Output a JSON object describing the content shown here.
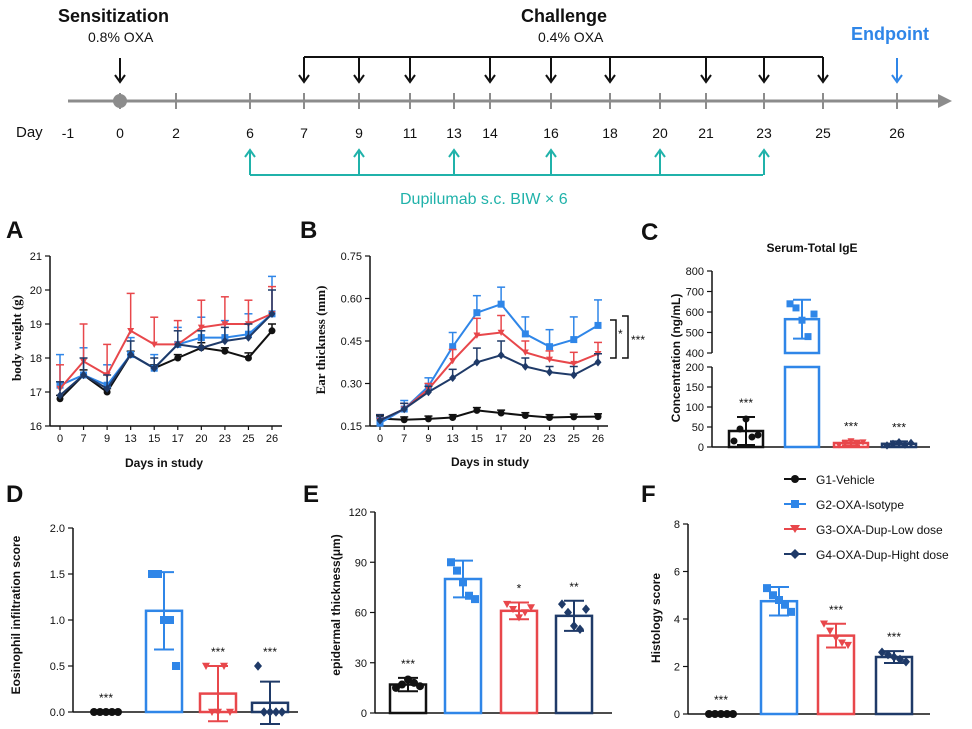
{
  "colors": {
    "black": "#111111",
    "blue": "#2f86e8",
    "red": "#e8474b",
    "navy": "#1f3a68",
    "teal": "#20b2aa",
    "gray": "#8c8c8c",
    "endpoint": "#2f86e8"
  },
  "timeline": {
    "sensitization_title": "Sensitization",
    "sensitization_sub": "0.8% OXA",
    "challenge_title": "Challenge",
    "challenge_sub": "0.4% OXA",
    "endpoint_title": "Endpoint",
    "day_label": "Day",
    "days": [
      "-1",
      "0",
      "2",
      "6",
      "7",
      "9",
      "11",
      "13",
      "14",
      "16",
      "18",
      "20",
      "21",
      "23",
      "25",
      "26"
    ],
    "sensitization_day": "0",
    "challenge_days": [
      "7",
      "9",
      "11",
      "14",
      "16",
      "18",
      "21",
      "23",
      "25"
    ],
    "dosing_days": [
      "6",
      "9",
      "13",
      "16",
      "20",
      "23"
    ],
    "dupilumab_label": "Dupilumab s.c. BIW × 6"
  },
  "legend": {
    "items": [
      {
        "label": "G1-Vehicle",
        "color": "#111111",
        "marker": "circle"
      },
      {
        "label": "G2-OXA-Isotype",
        "color": "#2f86e8",
        "marker": "square"
      },
      {
        "label": "G3-OXA-Dup-Low dose",
        "color": "#e8474b",
        "marker": "triangle-down"
      },
      {
        "label": "G4-OXA-Dup-Hight dose",
        "color": "#1f3a68",
        "marker": "diamond"
      }
    ]
  },
  "panels": {
    "A": "A",
    "B": "B",
    "C": "C",
    "D": "D",
    "E": "E",
    "F": "F"
  },
  "chart_data": [
    {
      "id": "A",
      "type": "line",
      "title": "",
      "xlabel": "Days in study",
      "ylabel": "body weight (g)",
      "x": [
        "0",
        "7",
        "9",
        "13",
        "15",
        "17",
        "20",
        "23",
        "25",
        "26"
      ],
      "ylim": [
        16,
        21
      ],
      "yticks": [
        "16",
        "17",
        "18",
        "19",
        "20",
        "21"
      ],
      "series": [
        {
          "name": "G1-Vehicle",
          "values": [
            16.8,
            17.5,
            17.0,
            18.1,
            17.7,
            18.0,
            18.3,
            18.2,
            18.0,
            18.8
          ],
          "err": [
            0.1,
            0.15,
            0.1,
            0.1,
            0.1,
            0.1,
            0.15,
            0.1,
            0.15,
            0.2
          ]
        },
        {
          "name": "G2-OXA-Isotype",
          "values": [
            17.2,
            17.5,
            17.2,
            18.1,
            17.7,
            18.4,
            18.6,
            18.6,
            18.7,
            19.3
          ],
          "err": [
            0.9,
            0.8,
            0.6,
            0.5,
            0.4,
            0.5,
            0.6,
            0.5,
            0.6,
            1.1
          ]
        },
        {
          "name": "G3-OXA-Dup-Low dose",
          "values": [
            17.1,
            17.9,
            17.5,
            18.8,
            18.4,
            18.4,
            18.9,
            19.0,
            19.0,
            19.3
          ],
          "err": [
            0.7,
            1.1,
            0.9,
            1.1,
            0.8,
            0.7,
            0.8,
            0.8,
            0.7,
            0.8
          ]
        },
        {
          "name": "G4-OXA-Dup-Hight dose",
          "values": [
            16.9,
            17.5,
            17.1,
            18.1,
            17.7,
            18.4,
            18.3,
            18.5,
            18.6,
            19.3
          ],
          "err": [
            0.4,
            0.5,
            0.4,
            0.4,
            0.3,
            0.4,
            0.5,
            0.4,
            0.4,
            0.7
          ]
        }
      ]
    },
    {
      "id": "B",
      "type": "line",
      "title": "",
      "xlabel": "Days in study",
      "ylabel": "Ear thickness (mm)",
      "x": [
        "0",
        "7",
        "9",
        "13",
        "15",
        "17",
        "20",
        "23",
        "25",
        "26"
      ],
      "ylim": [
        0.15,
        0.75
      ],
      "yticks": [
        "0.15",
        "0.30",
        "0.45",
        "0.60",
        "0.75"
      ],
      "series": [
        {
          "name": "G1-Vehicle",
          "values": [
            0.176,
            0.172,
            0.175,
            0.18,
            0.205,
            0.196,
            0.187,
            0.18,
            0.182,
            0.183
          ],
          "err": [
            0.01,
            0.01,
            0.01,
            0.01,
            0.01,
            0.01,
            0.01,
            0.01,
            0.01,
            0.01
          ]
        },
        {
          "name": "G2-OXA-Isotype",
          "values": [
            0.16,
            0.21,
            0.29,
            0.43,
            0.55,
            0.58,
            0.475,
            0.43,
            0.455,
            0.505
          ],
          "err": [
            0.02,
            0.03,
            0.03,
            0.05,
            0.06,
            0.06,
            0.06,
            0.06,
            0.08,
            0.09
          ]
        },
        {
          "name": "G3-OXA-Dup-Low dose",
          "values": [
            0.17,
            0.21,
            0.28,
            0.38,
            0.47,
            0.48,
            0.41,
            0.385,
            0.37,
            0.405
          ],
          "err": [
            0.02,
            0.02,
            0.02,
            0.04,
            0.06,
            0.06,
            0.04,
            0.03,
            0.04,
            0.04
          ]
        },
        {
          "name": "G4-OXA-Dup-Hight dose",
          "values": [
            0.17,
            0.21,
            0.27,
            0.32,
            0.375,
            0.4,
            0.36,
            0.34,
            0.33,
            0.375
          ],
          "err": [
            0.02,
            0.02,
            0.02,
            0.03,
            0.05,
            0.05,
            0.03,
            0.02,
            0.03,
            0.03
          ]
        }
      ],
      "annotations": [
        "*",
        "***"
      ]
    },
    {
      "id": "C",
      "type": "bar",
      "title": "Serum-Total IgE",
      "ylabel": "Concentration (ng/mL)",
      "categories": [
        "G1-Vehicle",
        "G2-OXA-Isotype",
        "G3-OXA-Dup-Low dose",
        "G4-OXA-Dup-Hight dose"
      ],
      "values": [
        40,
        565,
        10,
        8
      ],
      "err": [
        35,
        95,
        6,
        6
      ],
      "yticks_lower": [
        "0",
        "50",
        "100",
        "150",
        "200"
      ],
      "yticks_upper": [
        "400",
        "500",
        "600",
        "700",
        "800"
      ],
      "axis_break": [
        200,
        400
      ],
      "points": [
        [
          15,
          45,
          70,
          25,
          30
        ],
        [
          640,
          620,
          560,
          480,
          590
        ],
        [
          5,
          10,
          15,
          8,
          12
        ],
        [
          4,
          8,
          12,
          6,
          10
        ]
      ],
      "significance": [
        "***",
        "",
        "***",
        "***"
      ]
    },
    {
      "id": "D",
      "type": "bar",
      "title": "",
      "ylabel": "Eosinophil infiltration score",
      "categories": [
        "G1-Vehicle",
        "G2-OXA-Isotype",
        "G3-OXA-Dup-Low dose",
        "G4-OXA-Dup-Hight dose"
      ],
      "values": [
        0.0,
        1.1,
        0.2,
        0.1
      ],
      "err": [
        0.0,
        0.42,
        0.3,
        0.23
      ],
      "ylim": [
        0,
        2.0
      ],
      "yticks": [
        "0.0",
        "0.5",
        "1.0",
        "1.5",
        "2.0"
      ],
      "points": [
        [
          0,
          0,
          0,
          0,
          0
        ],
        [
          1.5,
          1.5,
          1.0,
          1.0,
          0.5
        ],
        [
          0.5,
          0,
          0,
          0.5,
          0
        ],
        [
          0.5,
          0,
          0,
          0,
          0
        ]
      ],
      "significance": [
        "***",
        "",
        "***",
        "***"
      ]
    },
    {
      "id": "E",
      "type": "bar",
      "title": "",
      "ylabel": "epidermal thickness(μm)",
      "categories": [
        "G1-Vehicle",
        "G2-OXA-Isotype",
        "G3-OXA-Dup-Low dose",
        "G4-OXA-Dup-Hight dose"
      ],
      "values": [
        17,
        80,
        61,
        58
      ],
      "err": [
        4,
        11,
        5,
        9
      ],
      "ylim": [
        0,
        120
      ],
      "yticks": [
        "0",
        "30",
        "60",
        "90",
        "120"
      ],
      "points": [
        [
          15,
          17,
          20,
          18,
          16
        ],
        [
          90,
          85,
          78,
          70,
          68
        ],
        [
          65,
          62,
          57,
          60,
          63
        ],
        [
          65,
          60,
          52,
          50,
          62
        ]
      ],
      "significance": [
        "***",
        "",
        "*",
        "**"
      ]
    },
    {
      "id": "F",
      "type": "bar",
      "title": "",
      "ylabel": "Histology score",
      "categories": [
        "G1-Vehicle",
        "G2-OXA-Isotype",
        "G3-OXA-Dup-Low dose",
        "G4-OXA-Dup-Hight dose"
      ],
      "values": [
        0.0,
        4.75,
        3.3,
        2.4
      ],
      "err": [
        0.0,
        0.6,
        0.5,
        0.25
      ],
      "ylim": [
        0,
        8
      ],
      "yticks": [
        "0",
        "2",
        "4",
        "6",
        "8"
      ],
      "points": [
        [
          0,
          0,
          0,
          0,
          0
        ],
        [
          5.3,
          5.0,
          4.8,
          4.6,
          4.3
        ],
        [
          3.8,
          3.5,
          3.2,
          3.0,
          2.9
        ],
        [
          2.6,
          2.5,
          2.4,
          2.3,
          2.2
        ]
      ],
      "significance": [
        "***",
        "",
        "***",
        "***"
      ]
    }
  ]
}
